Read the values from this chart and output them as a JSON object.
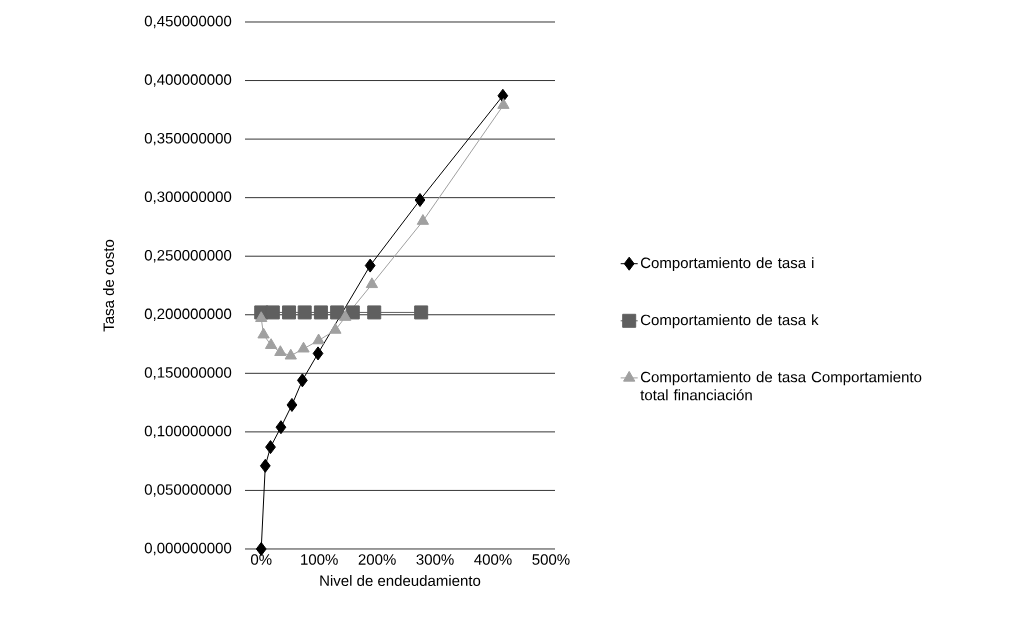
{
  "chart_data": {
    "type": "line",
    "xlabel": "Nivel de endeudamiento",
    "ylabel": "Tasa de costo",
    "xlim": [
      -28,
      507
    ],
    "ylim": [
      0,
      0.45
    ],
    "xticks": [
      {
        "value": 0,
        "label": "0%"
      },
      {
        "value": 100,
        "label": "100%"
      },
      {
        "value": 200,
        "label": "200%"
      },
      {
        "value": 300,
        "label": "300%"
      },
      {
        "value": 400,
        "label": "400%"
      },
      {
        "value": 500,
        "label": "500%"
      }
    ],
    "yticks": [
      {
        "value": 0,
        "label": "0,000000000"
      },
      {
        "value": 0.05,
        "label": "0,050000000"
      },
      {
        "value": 0.1,
        "label": "0,100000000"
      },
      {
        "value": 0.15,
        "label": "0,150000000"
      },
      {
        "value": 0.2,
        "label": "0,200000000"
      },
      {
        "value": 0.25,
        "label": "0,250000000"
      },
      {
        "value": 0.3,
        "label": "0,300000000"
      },
      {
        "value": 0.35,
        "label": "0,350000000"
      },
      {
        "value": 0.4,
        "label": "0,400000000"
      },
      {
        "value": 0.45,
        "label": "0,450000000"
      }
    ],
    "grid": "y",
    "legend": "right",
    "series": [
      {
        "name": "Comportamiento de tasa i",
        "color": "#000000",
        "marker": "diamond",
        "x": [
          0,
          7,
          16,
          34,
          53,
          71,
          98,
          188,
          274,
          417
        ],
        "values": [
          0,
          0.071,
          0.087,
          0.104,
          0.123,
          0.144,
          0.167,
          0.242,
          0.298,
          0.387
        ]
      },
      {
        "name": "Comportamiento de tasa k",
        "color": "#5f5f5f",
        "marker": "square",
        "x": [
          0,
          20,
          48,
          75,
          103,
          131,
          158,
          195,
          276
        ],
        "values": [
          0.202,
          0.202,
          0.202,
          0.202,
          0.202,
          0.202,
          0.202,
          0.202,
          0.202
        ]
      },
      {
        "name": "Comportamiento de tasa Comportamiento total financiación",
        "color": "#a0a0a0",
        "marker": "triangle",
        "x": [
          0,
          4,
          17,
          33,
          51,
          73,
          99,
          128,
          145,
          191,
          279,
          418
        ],
        "values": [
          0.197,
          0.183,
          0.174,
          0.168,
          0.165,
          0.171,
          0.178,
          0.187,
          0.198,
          0.226,
          0.28,
          0.379
        ]
      }
    ]
  }
}
